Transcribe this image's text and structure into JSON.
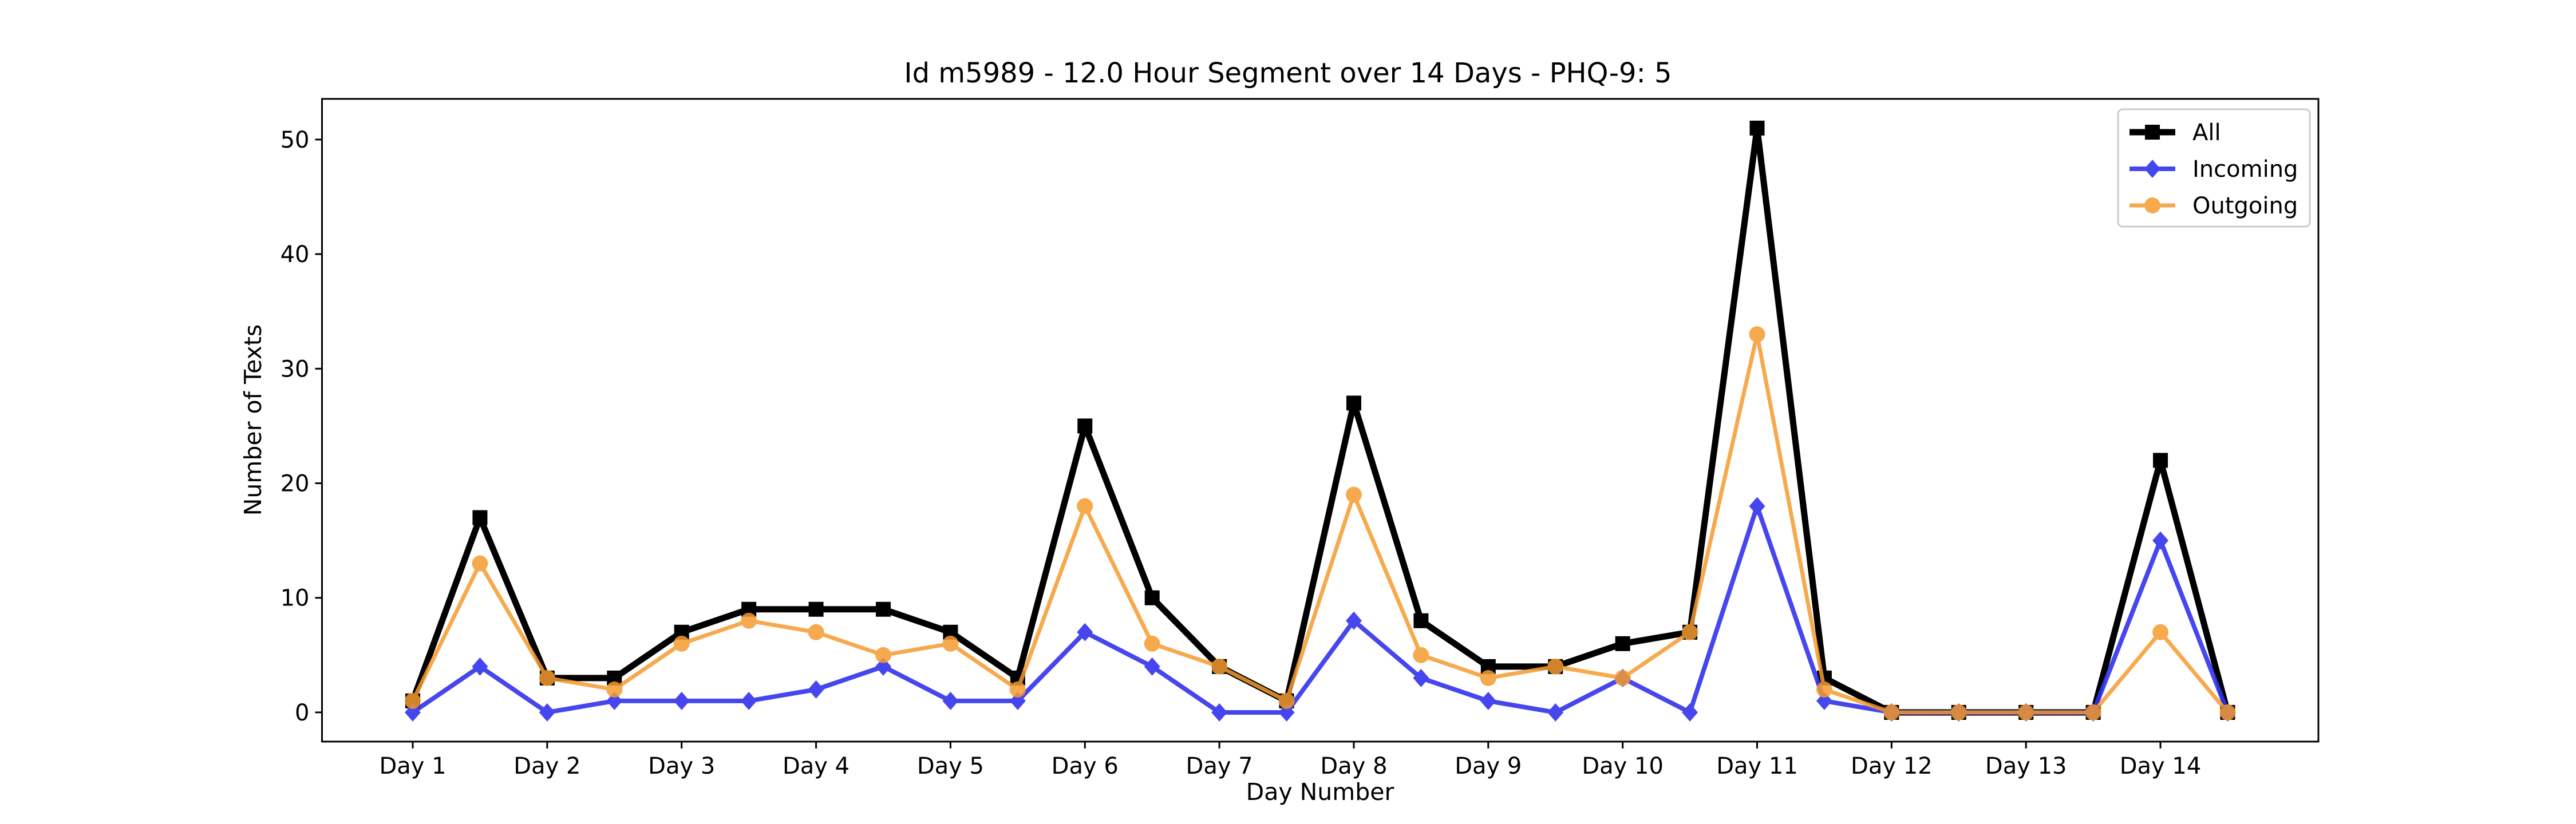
{
  "chart_data": {
    "type": "line",
    "title": "Id m5989 - 12.0 Hour Segment over 14 Days - PHQ-9: 5",
    "xlabel": "Day Number",
    "ylabel": "Number of Texts",
    "categories": [
      "Day 1",
      "Day 2",
      "Day 3",
      "Day 4",
      "Day 5",
      "Day 6",
      "Day 7",
      "Day 8",
      "Day 9",
      "Day 10",
      "Day 11",
      "Day 12",
      "Day 13",
      "Day 14"
    ],
    "x": [
      0,
      0.5,
      1,
      1.5,
      2,
      2.5,
      3,
      3.5,
      4,
      4.5,
      5,
      5.5,
      6,
      6.5,
      7,
      7.5,
      8,
      8.5,
      9,
      9.5,
      10,
      10.5,
      11,
      11.5,
      12,
      12.5,
      13,
      13.5
    ],
    "xlim": [
      -0.675,
      14.175
    ],
    "ylim": [
      -2.55,
      53.55
    ],
    "yticks": [
      0,
      10,
      20,
      30,
      40,
      50
    ],
    "grid": false,
    "legend_position": "top-right",
    "series": [
      {
        "name": "All",
        "color": "#000000",
        "marker": "square",
        "values": [
          1,
          17,
          3,
          3,
          7,
          9,
          9,
          9,
          7,
          3,
          25,
          10,
          4,
          1,
          27,
          8,
          4,
          4,
          6,
          7,
          51,
          3,
          0,
          0,
          0,
          0,
          22,
          0
        ]
      },
      {
        "name": "Incoming",
        "color": "#3333ee",
        "marker": "diamond",
        "values": [
          0,
          4,
          0,
          1,
          1,
          1,
          2,
          4,
          1,
          1,
          7,
          4,
          0,
          0,
          8,
          3,
          1,
          0,
          3,
          0,
          18,
          1,
          0,
          0,
          0,
          0,
          15,
          0
        ]
      },
      {
        "name": "Outgoing",
        "color": "#f59b2f",
        "marker": "circle",
        "values": [
          1,
          13,
          3,
          2,
          6,
          8,
          7,
          5,
          6,
          2,
          18,
          6,
          4,
          1,
          19,
          5,
          3,
          4,
          3,
          7,
          33,
          2,
          0,
          0,
          0,
          0,
          7,
          0
        ]
      }
    ]
  }
}
